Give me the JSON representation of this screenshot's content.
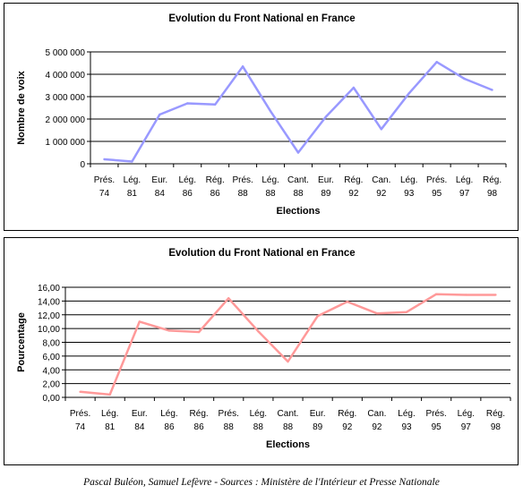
{
  "footer": "Pascal Buléon, Samuel Lefèvre - Sources : Ministère de l'Intérieur et Presse Nationale",
  "chart_data": [
    {
      "type": "line",
      "title": "Evolution du Front National en France",
      "xlabel": "Elections",
      "ylabel": "Nombre de voix",
      "categories": [
        [
          "Prés.",
          "74"
        ],
        [
          "Lég.",
          "81"
        ],
        [
          "Eur.",
          "84"
        ],
        [
          "Lég.",
          "86"
        ],
        [
          "Rég.",
          "86"
        ],
        [
          "Prés.",
          "88"
        ],
        [
          "Lég.",
          "88"
        ],
        [
          "Cant.",
          "88"
        ],
        [
          "Eur.",
          "89"
        ],
        [
          "Rég.",
          "92"
        ],
        [
          "Can.",
          "92"
        ],
        [
          "Lég.",
          "93"
        ],
        [
          "Prés.",
          "95"
        ],
        [
          "Lég.",
          "97"
        ],
        [
          "Rég.",
          "98"
        ]
      ],
      "values": [
        200000,
        100000,
        2200000,
        2700000,
        2650000,
        4350000,
        2350000,
        500000,
        2100000,
        3400000,
        1550000,
        3150000,
        4550000,
        3800000,
        3300000
      ],
      "ylim": [
        0,
        5000000
      ],
      "yticks": [
        0,
        1000000,
        2000000,
        3000000,
        4000000,
        5000000
      ],
      "ytick_labels": [
        "0",
        "1 000 000",
        "2 000 000",
        "3 000 000",
        "4 000 000",
        "5 000 000"
      ],
      "grid": true,
      "color": "#9999ff"
    },
    {
      "type": "line",
      "title": "Evolution du Front National en France",
      "xlabel": "Elections",
      "ylabel": "Pourcentage",
      "categories": [
        [
          "Prés.",
          "74"
        ],
        [
          "Lég.",
          "81"
        ],
        [
          "Eur.",
          "84"
        ],
        [
          "Lég.",
          "86"
        ],
        [
          "Rég.",
          "86"
        ],
        [
          "Prés.",
          "88"
        ],
        [
          "Lég.",
          "88"
        ],
        [
          "Cant.",
          "88"
        ],
        [
          "Eur.",
          "89"
        ],
        [
          "Rég.",
          "92"
        ],
        [
          "Can.",
          "92"
        ],
        [
          "Lég.",
          "93"
        ],
        [
          "Prés.",
          "95"
        ],
        [
          "Lég.",
          "97"
        ],
        [
          "Rég.",
          "98"
        ]
      ],
      "values": [
        0.8,
        0.4,
        11.0,
        9.7,
        9.5,
        14.4,
        9.6,
        5.2,
        11.8,
        13.9,
        12.2,
        12.4,
        15.0,
        14.9,
        14.9
      ],
      "ylim": [
        0,
        16
      ],
      "yticks": [
        0,
        2,
        4,
        6,
        8,
        10,
        12,
        14,
        16
      ],
      "ytick_labels": [
        "0,00",
        "2,00",
        "4,00",
        "6,00",
        "8,00",
        "10,00",
        "12,00",
        "14,00",
        "16,00"
      ],
      "grid": true,
      "color": "#ff9999"
    }
  ]
}
